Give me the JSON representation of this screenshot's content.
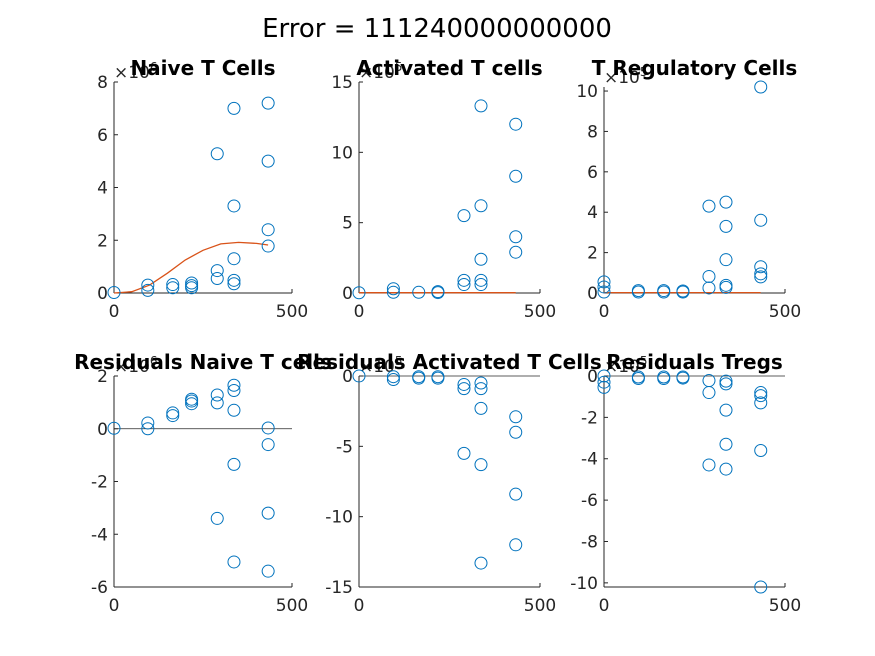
{
  "figure_title": "Error = 111240000000000",
  "chart_data": [
    {
      "type": "scatter",
      "title": "Naive T Cells",
      "exponent": "6",
      "xlim": [
        0,
        500
      ],
      "ylim": [
        0,
        8
      ],
      "xticks": [
        0,
        500
      ],
      "yticks": [
        0,
        2,
        4,
        6,
        8
      ],
      "ytick_labels": [
        "0",
        "2",
        "4",
        "6",
        "8"
      ],
      "points": [
        [
          0,
          0.02
        ],
        [
          95,
          0.1
        ],
        [
          95,
          0.3
        ],
        [
          165,
          0.2
        ],
        [
          165,
          0.32
        ],
        [
          218,
          0.2
        ],
        [
          218,
          0.28
        ],
        [
          218,
          0.38
        ],
        [
          290,
          0.55
        ],
        [
          290,
          0.85
        ],
        [
          290,
          5.28
        ],
        [
          337,
          0.35
        ],
        [
          337,
          0.48
        ],
        [
          337,
          1.3
        ],
        [
          337,
          3.3
        ],
        [
          337,
          7.0
        ],
        [
          433,
          1.78
        ],
        [
          433,
          2.4
        ],
        [
          433,
          5.0
        ],
        [
          433,
          7.2
        ]
      ],
      "fit_line": [
        [
          0,
          0
        ],
        [
          50,
          0.05
        ],
        [
          100,
          0.3
        ],
        [
          150,
          0.75
        ],
        [
          200,
          1.25
        ],
        [
          250,
          1.62
        ],
        [
          300,
          1.86
        ],
        [
          350,
          1.92
        ],
        [
          400,
          1.88
        ],
        [
          433,
          1.82
        ]
      ],
      "zero_line": false
    },
    {
      "type": "scatter",
      "title": "Activated T cells",
      "exponent": "5",
      "xlim": [
        0,
        500
      ],
      "ylim": [
        0,
        15
      ],
      "xticks": [
        0,
        500
      ],
      "yticks": [
        0,
        5,
        10,
        15
      ],
      "ytick_labels": [
        "0",
        "5",
        "10",
        "15"
      ],
      "points": [
        [
          0,
          0.02
        ],
        [
          95,
          0.05
        ],
        [
          95,
          0.3
        ],
        [
          165,
          0.05
        ],
        [
          218,
          0.03
        ],
        [
          218,
          0.1
        ],
        [
          290,
          0.6
        ],
        [
          290,
          0.9
        ],
        [
          290,
          5.5
        ],
        [
          337,
          0.6
        ],
        [
          337,
          0.9
        ],
        [
          337,
          2.4
        ],
        [
          337,
          6.2
        ],
        [
          337,
          13.3
        ],
        [
          433,
          2.9
        ],
        [
          433,
          4.0
        ],
        [
          433,
          8.3
        ],
        [
          433,
          12.0
        ]
      ],
      "fit_line": [
        [
          0,
          0.02
        ],
        [
          433,
          0.02
        ]
      ],
      "zero_line": false
    },
    {
      "type": "scatter",
      "title": "T Regulatory Cells",
      "exponent": "5",
      "xlim": [
        0,
        500
      ],
      "ylim": [
        0,
        10.2
      ],
      "xticks": [
        0,
        500
      ],
      "yticks": [
        0,
        2,
        4,
        6,
        8,
        10
      ],
      "ytick_labels": [
        "0",
        "2",
        "4",
        "6",
        "8",
        "10"
      ],
      "points": [
        [
          0,
          0.05
        ],
        [
          0,
          0.3
        ],
        [
          0,
          0.55
        ],
        [
          95,
          0.05
        ],
        [
          95,
          0.12
        ],
        [
          165,
          0.05
        ],
        [
          165,
          0.12
        ],
        [
          218,
          0.05
        ],
        [
          218,
          0.1
        ],
        [
          290,
          0.25
        ],
        [
          290,
          0.82
        ],
        [
          290,
          4.3
        ],
        [
          337,
          0.28
        ],
        [
          337,
          0.38
        ],
        [
          337,
          1.65
        ],
        [
          337,
          3.3
        ],
        [
          337,
          4.5
        ],
        [
          433,
          0.8
        ],
        [
          433,
          0.95
        ],
        [
          433,
          1.3
        ],
        [
          433,
          3.6
        ],
        [
          433,
          10.2
        ]
      ],
      "fit_line": [
        [
          0,
          0.02
        ],
        [
          433,
          0.02
        ]
      ],
      "zero_line": false
    },
    {
      "type": "scatter",
      "title": "Residuals Naive T cells",
      "exponent": "6",
      "xlim": [
        0,
        500
      ],
      "ylim": [
        -6,
        2
      ],
      "xticks": [
        0,
        500
      ],
      "yticks": [
        -6,
        -4,
        -2,
        0,
        2
      ],
      "ytick_labels": [
        "-6",
        "-4",
        "-2",
        "0",
        "2"
      ],
      "points": [
        [
          0,
          0.02
        ],
        [
          95,
          0.0
        ],
        [
          95,
          0.22
        ],
        [
          165,
          0.5
        ],
        [
          165,
          0.6
        ],
        [
          218,
          0.95
        ],
        [
          218,
          1.05
        ],
        [
          218,
          1.12
        ],
        [
          290,
          0.98
        ],
        [
          290,
          1.28
        ],
        [
          290,
          -3.4
        ],
        [
          337,
          0.7
        ],
        [
          337,
          1.45
        ],
        [
          337,
          1.65
        ],
        [
          337,
          -1.35
        ],
        [
          337,
          -5.05
        ],
        [
          433,
          0.03
        ],
        [
          433,
          -0.6
        ],
        [
          433,
          -3.2
        ],
        [
          433,
          -5.4
        ]
      ],
      "fit_line": [],
      "zero_line": true
    },
    {
      "type": "scatter",
      "title": "Residuals Activated T Cells",
      "exponent": "5",
      "xlim": [
        0,
        500
      ],
      "ylim": [
        -15,
        0
      ],
      "xticks": [
        0,
        500
      ],
      "yticks": [
        -15,
        -10,
        -5,
        0
      ],
      "ytick_labels": [
        "-15",
        "-10",
        "-5",
        "0"
      ],
      "points": [
        [
          0,
          0.0
        ],
        [
          95,
          -0.05
        ],
        [
          95,
          -0.25
        ],
        [
          165,
          -0.05
        ],
        [
          165,
          -0.15
        ],
        [
          218,
          -0.05
        ],
        [
          218,
          -0.15
        ],
        [
          290,
          -0.6
        ],
        [
          290,
          -0.9
        ],
        [
          290,
          -5.5
        ],
        [
          337,
          -0.5
        ],
        [
          337,
          -0.9
        ],
        [
          337,
          -2.3
        ],
        [
          337,
          -6.3
        ],
        [
          337,
          -13.3
        ],
        [
          433,
          -2.9
        ],
        [
          433,
          -4.0
        ],
        [
          433,
          -8.4
        ],
        [
          433,
          -12.0
        ]
      ],
      "fit_line": [],
      "zero_line": true
    },
    {
      "type": "scatter",
      "title": "Residuals Tregs",
      "exponent": "5",
      "xlim": [
        0,
        500
      ],
      "ylim": [
        -10.2,
        0
      ],
      "xticks": [
        0,
        500
      ],
      "yticks": [
        -10,
        -8,
        -6,
        -4,
        -2,
        0
      ],
      "ytick_labels": [
        "-10",
        "-8",
        "-6",
        "-4",
        "-2",
        "0"
      ],
      "points": [
        [
          0,
          0.0
        ],
        [
          0,
          -0.3
        ],
        [
          0,
          -0.55
        ],
        [
          95,
          -0.05
        ],
        [
          95,
          -0.12
        ],
        [
          165,
          -0.05
        ],
        [
          165,
          -0.12
        ],
        [
          218,
          -0.05
        ],
        [
          218,
          -0.1
        ],
        [
          290,
          -0.22
        ],
        [
          290,
          -0.8
        ],
        [
          290,
          -4.3
        ],
        [
          337,
          -0.25
        ],
        [
          337,
          -0.38
        ],
        [
          337,
          -1.65
        ],
        [
          337,
          -3.3
        ],
        [
          337,
          -4.5
        ],
        [
          433,
          -0.8
        ],
        [
          433,
          -0.95
        ],
        [
          433,
          -1.3
        ],
        [
          433,
          -3.6
        ],
        [
          433,
          -10.2
        ]
      ],
      "fit_line": [],
      "zero_line": true
    }
  ],
  "colors": {
    "marker": "#0072BD",
    "fit": "#D95319",
    "axis": "#262626"
  }
}
